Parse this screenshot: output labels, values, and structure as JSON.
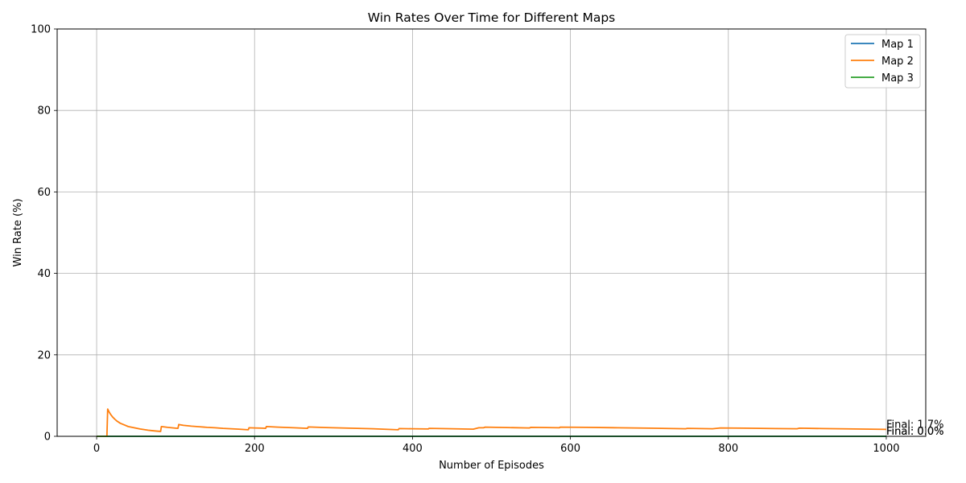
{
  "chart_data": {
    "type": "line",
    "title": "Win Rates Over Time for Different Maps",
    "xlabel": "Number of Episodes",
    "ylabel": "Win Rate (%)",
    "xlim": [
      -50,
      1050
    ],
    "ylim": [
      0,
      100
    ],
    "xticks": [
      0,
      200,
      400,
      600,
      800,
      1000
    ],
    "yticks": [
      0,
      20,
      40,
      60,
      80,
      100
    ],
    "grid": true,
    "legend_position": "top-right",
    "series": [
      {
        "name": "Map 1",
        "color": "#1f77b4",
        "points": [
          [
            0,
            0
          ],
          [
            1000,
            0
          ]
        ]
      },
      {
        "name": "Map 2",
        "color": "#ff7f0e",
        "points": [
          [
            0,
            0
          ],
          [
            13,
            0
          ],
          [
            14,
            6.7
          ],
          [
            16,
            5.9
          ],
          [
            18,
            5.3
          ],
          [
            20,
            4.8
          ],
          [
            23,
            4.2
          ],
          [
            26,
            3.7
          ],
          [
            30,
            3.2
          ],
          [
            35,
            2.8
          ],
          [
            40,
            2.4
          ],
          [
            45,
            2.2
          ],
          [
            50,
            2.0
          ],
          [
            55,
            1.8
          ],
          [
            60,
            1.65
          ],
          [
            65,
            1.5
          ],
          [
            70,
            1.4
          ],
          [
            75,
            1.3
          ],
          [
            81,
            1.2
          ],
          [
            82,
            2.4
          ],
          [
            90,
            2.2
          ],
          [
            100,
            2.0
          ],
          [
            103,
            1.95
          ],
          [
            104,
            2.9
          ],
          [
            110,
            2.7
          ],
          [
            120,
            2.5
          ],
          [
            130,
            2.35
          ],
          [
            140,
            2.2
          ],
          [
            150,
            2.1
          ],
          [
            160,
            1.95
          ],
          [
            170,
            1.85
          ],
          [
            180,
            1.75
          ],
          [
            192,
            1.6
          ],
          [
            193,
            2.1
          ],
          [
            200,
            2.05
          ],
          [
            210,
            2.0
          ],
          [
            214,
            1.95
          ],
          [
            215,
            2.4
          ],
          [
            230,
            2.25
          ],
          [
            250,
            2.1
          ],
          [
            267,
            1.95
          ],
          [
            268,
            2.3
          ],
          [
            290,
            2.15
          ],
          [
            320,
            2.0
          ],
          [
            350,
            1.85
          ],
          [
            382,
            1.6
          ],
          [
            383,
            1.9
          ],
          [
            400,
            1.85
          ],
          [
            420,
            1.8
          ],
          [
            421,
            1.95
          ],
          [
            450,
            1.85
          ],
          [
            477,
            1.75
          ],
          [
            484,
            2.1
          ],
          [
            490,
            2.1
          ],
          [
            492,
            2.25
          ],
          [
            520,
            2.15
          ],
          [
            548,
            2.05
          ],
          [
            550,
            2.2
          ],
          [
            570,
            2.15
          ],
          [
            586,
            2.1
          ],
          [
            587,
            2.25
          ],
          [
            620,
            2.2
          ],
          [
            660,
            2.1
          ],
          [
            700,
            2.0
          ],
          [
            746,
            1.85
          ],
          [
            748,
            1.95
          ],
          [
            780,
            1.85
          ],
          [
            790,
            2.05
          ],
          [
            820,
            2.0
          ],
          [
            860,
            1.9
          ],
          [
            887,
            1.85
          ],
          [
            890,
            2.0
          ],
          [
            920,
            1.9
          ],
          [
            960,
            1.8
          ],
          [
            1000,
            1.7
          ]
        ]
      },
      {
        "name": "Map 3",
        "color": "#2ca02c",
        "points": [
          [
            0,
            0
          ],
          [
            1000,
            0
          ]
        ]
      }
    ],
    "annotations": [
      {
        "text": "Final: 1.7%",
        "x": 1000,
        "y": 1.7
      },
      {
        "text": "Final: 0.0%",
        "x": 1000,
        "y": 0.0
      },
      {
        "text": "Final: 0.0%",
        "x": 1000,
        "y": 0.0
      }
    ]
  }
}
